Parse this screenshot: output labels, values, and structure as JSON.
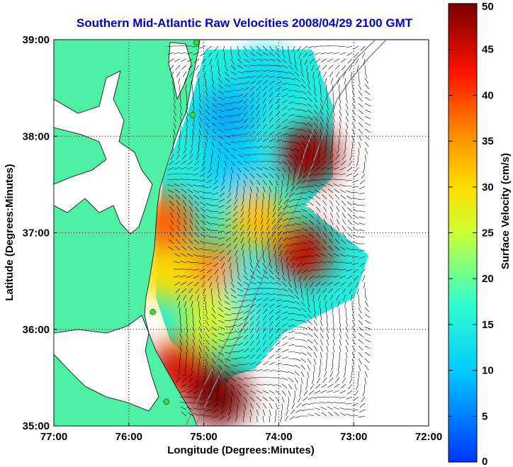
{
  "chart_data": {
    "type": "heatmap",
    "title": "Southern Mid-Atlantic Raw Velocities 2008/04/29 2100 GMT",
    "xlabel": "Longitude (Degrees:Minutes)",
    "ylabel": "Latitude (Degrees:Minutes)",
    "x_ticks": [
      "77:00",
      "76:00",
      "75:00",
      "74:00",
      "73:00",
      "72:00"
    ],
    "x_tick_values": [
      -77,
      -76,
      -75,
      -74,
      -73,
      -72
    ],
    "y_ticks": [
      "39:00",
      "38:00",
      "37:00",
      "36:00",
      "35:00"
    ],
    "y_tick_values": [
      39,
      38,
      37,
      36,
      35
    ],
    "xlim": [
      -77,
      -72
    ],
    "ylim": [
      35,
      39
    ],
    "grid": true,
    "colorbar": {
      "label": "Surface Velocity (cm/s)",
      "ticks": [
        "0",
        "5",
        "10",
        "15",
        "20",
        "25",
        "30",
        "35",
        "40",
        "45",
        "50"
      ],
      "range": [
        0,
        50
      ]
    },
    "colors": {
      "land": "#4ef0a4",
      "coast": "#000000",
      "title": "#0000cc",
      "grid": "#000000",
      "site_marker": "#33dd33"
    },
    "regions": [
      {
        "lon": -74.7,
        "lat": 38.2,
        "speed": 8
      },
      {
        "lon": -74.6,
        "lat": 37.7,
        "speed": 10
      },
      {
        "lon": -74.2,
        "lat": 38.6,
        "speed": 12
      },
      {
        "lon": -73.6,
        "lat": 37.8,
        "speed": 48
      },
      {
        "lon": -73.7,
        "lat": 36.8,
        "speed": 46
      },
      {
        "lon": -74.9,
        "lat": 36.6,
        "speed": 36
      },
      {
        "lon": -75.5,
        "lat": 36.6,
        "speed": 30
      },
      {
        "lon": -75.5,
        "lat": 37.1,
        "speed": 38
      },
      {
        "lon": -75.3,
        "lat": 35.6,
        "speed": 45
      },
      {
        "lon": -74.8,
        "lat": 35.3,
        "speed": 50
      },
      {
        "lon": -74.4,
        "lat": 36.3,
        "speed": 14
      },
      {
        "lon": -74.9,
        "lat": 36.1,
        "speed": 26
      },
      {
        "lon": -74.3,
        "lat": 37.15,
        "speed": 32
      }
    ],
    "sites": [
      {
        "lon": -75.1,
        "lat": 38.97
      },
      {
        "lon": -75.15,
        "lat": 38.22
      },
      {
        "lon": -75.68,
        "lat": 36.18
      },
      {
        "lon": -75.5,
        "lat": 35.25
      }
    ]
  }
}
